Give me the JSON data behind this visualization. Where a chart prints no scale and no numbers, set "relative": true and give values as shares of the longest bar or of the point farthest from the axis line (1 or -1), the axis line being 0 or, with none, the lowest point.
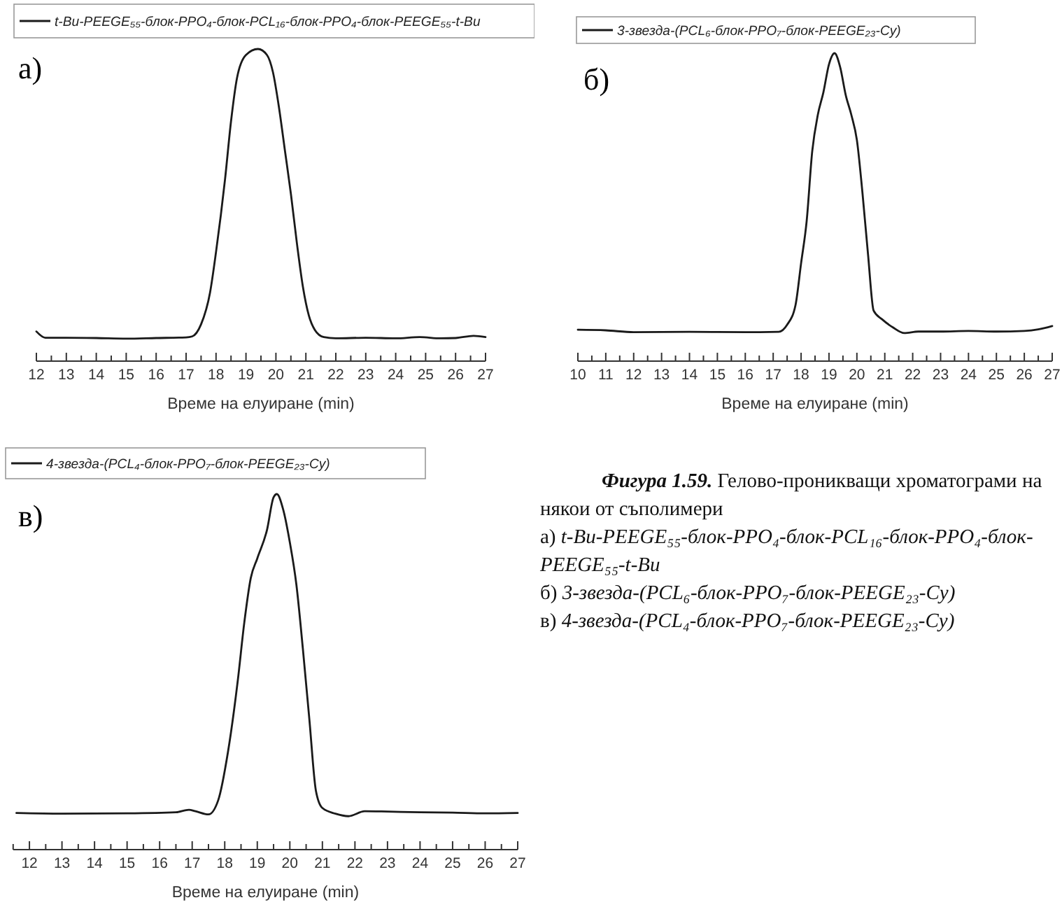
{
  "chart_data": [
    {
      "type": "line",
      "title": "а)",
      "xlabel": "Време на елуиране (min)",
      "relative": true,
      "legend": "top",
      "xlim": [
        12,
        27
      ],
      "xticks": [
        12,
        {
          "value": 12.5,
          "label": null
        },
        13,
        {
          "value": 13.5,
          "label": null
        },
        14,
        {
          "value": 14.5,
          "label": null
        },
        15,
        {
          "value": 15.5,
          "label": null
        },
        16,
        {
          "value": 16.5,
          "label": null
        },
        17,
        {
          "value": 17.5,
          "label": null
        },
        18,
        {
          "value": 18.5,
          "label": null
        },
        19,
        {
          "value": 19.5,
          "label": null
        },
        20,
        {
          "value": 20.5,
          "label": null
        },
        21,
        {
          "value": 21.5,
          "label": null
        },
        22,
        {
          "value": 22.5,
          "label": null
        },
        23,
        {
          "value": 23.5,
          "label": null
        },
        24,
        {
          "value": 24.5,
          "label": null
        },
        25,
        {
          "value": 25.5,
          "label": null
        },
        26,
        {
          "value": 26.5,
          "label": null
        },
        27
      ],
      "x": [
        12,
        12.3,
        13,
        14,
        15,
        16,
        17,
        17.2,
        17.5,
        17.8,
        18.0,
        18.3,
        18.5,
        18.7,
        19.0,
        19.4,
        19.7,
        19.9,
        20.1,
        20.3,
        20.5,
        20.7,
        20.9,
        21.1,
        21.3,
        21.6,
        22,
        23,
        24,
        24.8,
        25.5,
        26,
        26.6,
        27
      ],
      "series": [
        {
          "name": "t-Bu-PEEGE₅₅-блок-PPO₄-блок-PCL₁₆-блок-PPO₄-блок-PEEGE₅₅-t-Bu",
          "color": "#1a1a1a",
          "values": [
            0.095,
            0.075,
            0.075,
            0.074,
            0.072,
            0.074,
            0.076,
            0.079,
            0.118,
            0.22,
            0.35,
            0.582,
            0.768,
            0.907,
            0.981,
            1,
            0.981,
            0.926,
            0.814,
            0.675,
            0.536,
            0.378,
            0.239,
            0.146,
            0.1,
            0.077,
            0.073,
            0.075,
            0.073,
            0.077,
            0.073,
            0.074,
            0.081,
            0.077
          ]
        }
      ]
    },
    {
      "type": "line",
      "title": "б)",
      "xlabel": "Време на елуиране (min)",
      "relative": true,
      "legend": "top",
      "xlim": [
        10,
        27
      ],
      "xticks": [
        10,
        {
          "value": 10.5,
          "label": null
        },
        11,
        {
          "value": 11.5,
          "label": null
        },
        12,
        {
          "value": 12.5,
          "label": null
        },
        13,
        {
          "value": 13.5,
          "label": null
        },
        14,
        {
          "value": 14.5,
          "label": null
        },
        15,
        {
          "value": 15.5,
          "label": null
        },
        16,
        {
          "value": 16.5,
          "label": null
        },
        17,
        {
          "value": 17.5,
          "label": null
        },
        18,
        {
          "value": 18.5,
          "label": null
        },
        19,
        {
          "value": 19.5,
          "label": null
        },
        20,
        {
          "value": 20.5,
          "label": null
        },
        21,
        {
          "value": 21.5,
          "label": null
        },
        22,
        {
          "value": 22.5,
          "label": null
        },
        23,
        {
          "value": 23.5,
          "label": null
        },
        24,
        {
          "value": 24.5,
          "label": null
        },
        25,
        {
          "value": 25.5,
          "label": null
        },
        26,
        {
          "value": 26.5,
          "label": null
        },
        27
      ],
      "x": [
        10,
        11,
        12,
        14,
        16,
        17.2,
        17.5,
        17.8,
        18.0,
        18.2,
        18.4,
        18.6,
        18.8,
        19.0,
        19.2,
        19.4,
        19.6,
        19.8,
        20.0,
        20.2,
        20.4,
        20.6,
        20.9,
        21.3,
        21.7,
        22.2,
        23,
        24,
        25,
        26,
        26.5,
        27
      ],
      "series": [
        {
          "name": "3-звезда-(PCL₆-блок-PPO₇-блок-PEEGE₂₃-Cy)",
          "color": "#1a1a1a",
          "values": [
            0.102,
            0.1,
            0.094,
            0.095,
            0.094,
            0.095,
            0.118,
            0.182,
            0.318,
            0.455,
            0.682,
            0.8,
            0.873,
            0.964,
            1,
            0.955,
            0.864,
            0.8,
            0.718,
            0.546,
            0.346,
            0.164,
            0.136,
            0.109,
            0.091,
            0.096,
            0.096,
            0.098,
            0.096,
            0.098,
            0.103,
            0.114
          ]
        }
      ]
    },
    {
      "type": "line",
      "title": "в)",
      "xlabel": "Време на елуиране (min)",
      "relative": true,
      "legend": "top",
      "xlim": [
        11.5,
        27
      ],
      "xticks": [
        {
          "value": 11.5,
          "label": null
        },
        12,
        {
          "value": 12.5,
          "label": null
        },
        13,
        {
          "value": 13.5,
          "label": null
        },
        14,
        {
          "value": 14.5,
          "label": null
        },
        15,
        {
          "value": 15.5,
          "label": null
        },
        16,
        {
          "value": 16.5,
          "label": null
        },
        17,
        {
          "value": 17.5,
          "label": null
        },
        18,
        {
          "value": 18.5,
          "label": null
        },
        19,
        {
          "value": 19.5,
          "label": null
        },
        20,
        {
          "value": 20.5,
          "label": null
        },
        21,
        {
          "value": 21.5,
          "label": null
        },
        22,
        {
          "value": 22.5,
          "label": null
        },
        23,
        {
          "value": 23.5,
          "label": null
        },
        24,
        {
          "value": 24.5,
          "label": null
        },
        25,
        {
          "value": 25.5,
          "label": null
        },
        26,
        {
          "value": 26.5,
          "label": null
        },
        27
      ],
      "x": [
        11.6,
        13,
        15,
        16.5,
        16.9,
        17.1,
        17.5,
        17.8,
        18.1,
        18.4,
        18.6,
        18.8,
        19.0,
        19.3,
        19.5,
        19.6,
        19.8,
        20.0,
        20.2,
        20.4,
        20.6,
        20.8,
        21.0,
        21.4,
        21.8,
        22.3,
        23,
        24,
        25,
        26,
        27
      ],
      "series": [
        {
          "name": "4-звезда-(PCL₄-блок-PPO₇-блок-PEEGE₂₃-Cy)",
          "color": "#1a1a1a",
          "values": [
            0.103,
            0.101,
            0.102,
            0.105,
            0.112,
            0.108,
            0.099,
            0.139,
            0.275,
            0.475,
            0.638,
            0.764,
            0.819,
            0.9,
            0.991,
            1,
            0.955,
            0.864,
            0.746,
            0.565,
            0.366,
            0.166,
            0.117,
            0.101,
            0.094,
            0.108,
            0.107,
            0.105,
            0.104,
            0.102,
            0.103
          ]
        }
      ]
    },
    {
      "type": "other",
      "annotations": [
        "Фигура 1.59.",
        "Гелово-проникващи хроматограми на някои от съполимери",
        "а)",
        "t-Bu-PEEGE₅₅-блок-PPO₄-блок-PCL₁₆-блок-PPO₄-блок-PEEGE₅₅-t-Bu",
        "б)",
        "3-звезда-(PCL₆-блок-PPO₇-блок-PEEGE₂₃-Cy)",
        "в)",
        "4-звезда-(PCL₄-блок-PPO₇-блок-PEEGE₂₃-Cy)"
      ]
    }
  ]
}
